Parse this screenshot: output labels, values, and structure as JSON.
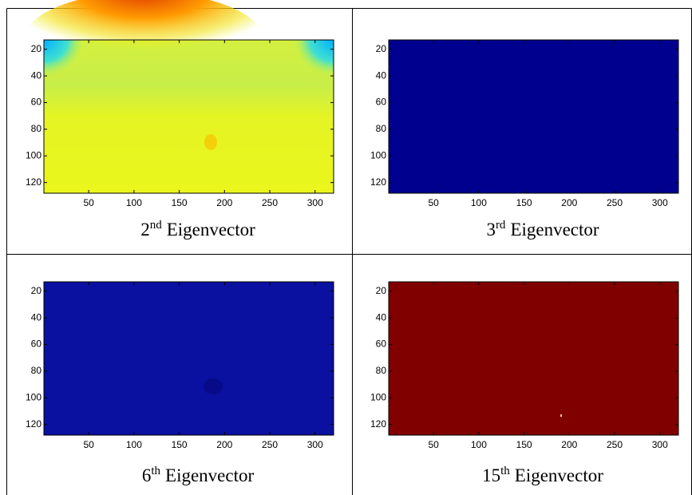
{
  "chart_data": [
    {
      "type": "image",
      "xlim": [
        0.5,
        320.5
      ],
      "ylim": [
        128,
        13
      ],
      "xticks": [
        50,
        100,
        150,
        200,
        250,
        300
      ],
      "yticks": [
        20,
        40,
        60,
        80,
        100,
        120
      ],
      "caption": {
        "base": "2",
        "sup": "nd",
        "text": "Eigenvector"
      }
    },
    {
      "type": "image",
      "xlim": [
        0.5,
        320.5
      ],
      "ylim": [
        128,
        13
      ],
      "xticks": [
        50,
        100,
        150,
        200,
        250,
        300
      ],
      "yticks": [
        20,
        40,
        60,
        80,
        100,
        120
      ],
      "caption": {
        "base": "3",
        "sup": "rd",
        "text": "Eigenvector"
      }
    },
    {
      "type": "image",
      "xlim": [
        0.5,
        320.5
      ],
      "ylim": [
        128,
        13
      ],
      "xticks": [
        50,
        100,
        150,
        200,
        250,
        300
      ],
      "yticks": [
        20,
        40,
        60,
        80,
        100,
        120
      ],
      "caption": {
        "base": "6",
        "sup": "th",
        "text": "Eigenvector"
      }
    },
    {
      "type": "image",
      "xlim": [
        0.5,
        320.5
      ],
      "ylim": [
        128,
        13
      ],
      "xticks": [
        50,
        100,
        150,
        200,
        250,
        300
      ],
      "yticks": [
        20,
        40,
        60,
        80,
        100,
        120
      ],
      "caption": {
        "base": "15",
        "sup": "th",
        "text": "Eigenvector"
      }
    }
  ]
}
